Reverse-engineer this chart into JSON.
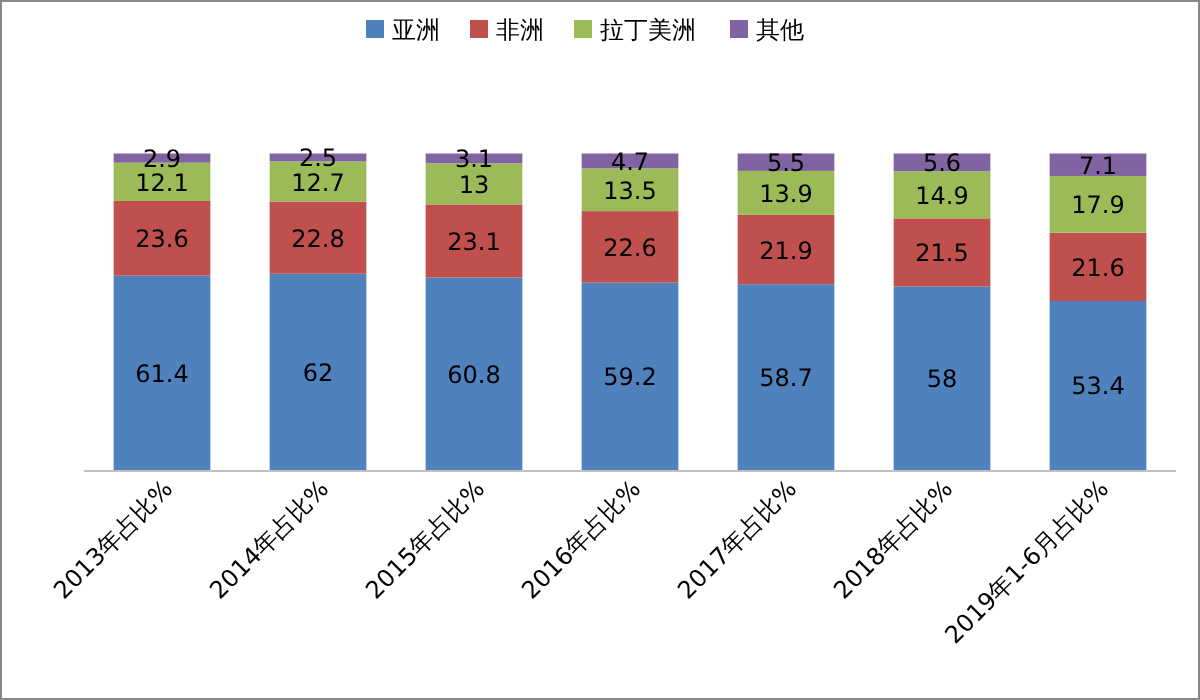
{
  "chart_data": {
    "type": "bar",
    "stacked": true,
    "data_labels": true,
    "legend": "top",
    "categories": [
      "2013年占比%",
      "2014年占比%",
      "2015年占比%",
      "2016年占比%",
      "2017年占比%",
      "2018年占比%",
      "2019年1-6月占比%"
    ],
    "series": [
      {
        "name": "亚洲",
        "color": "#4f81bd",
        "values": [
          61.4,
          62,
          60.8,
          59.2,
          58.7,
          58,
          53.4
        ]
      },
      {
        "name": "非洲",
        "color": "#c0504d",
        "values": [
          23.6,
          22.8,
          23.1,
          22.6,
          21.9,
          21.5,
          21.6
        ]
      },
      {
        "name": "拉丁美洲",
        "color": "#9bbb59",
        "values": [
          12.1,
          12.7,
          13,
          13.5,
          13.9,
          14.9,
          17.9
        ]
      },
      {
        "name": "其他",
        "color": "#8064a2",
        "values": [
          2.9,
          2.5,
          3.1,
          4.7,
          5.5,
          5.6,
          7.1
        ]
      }
    ]
  }
}
